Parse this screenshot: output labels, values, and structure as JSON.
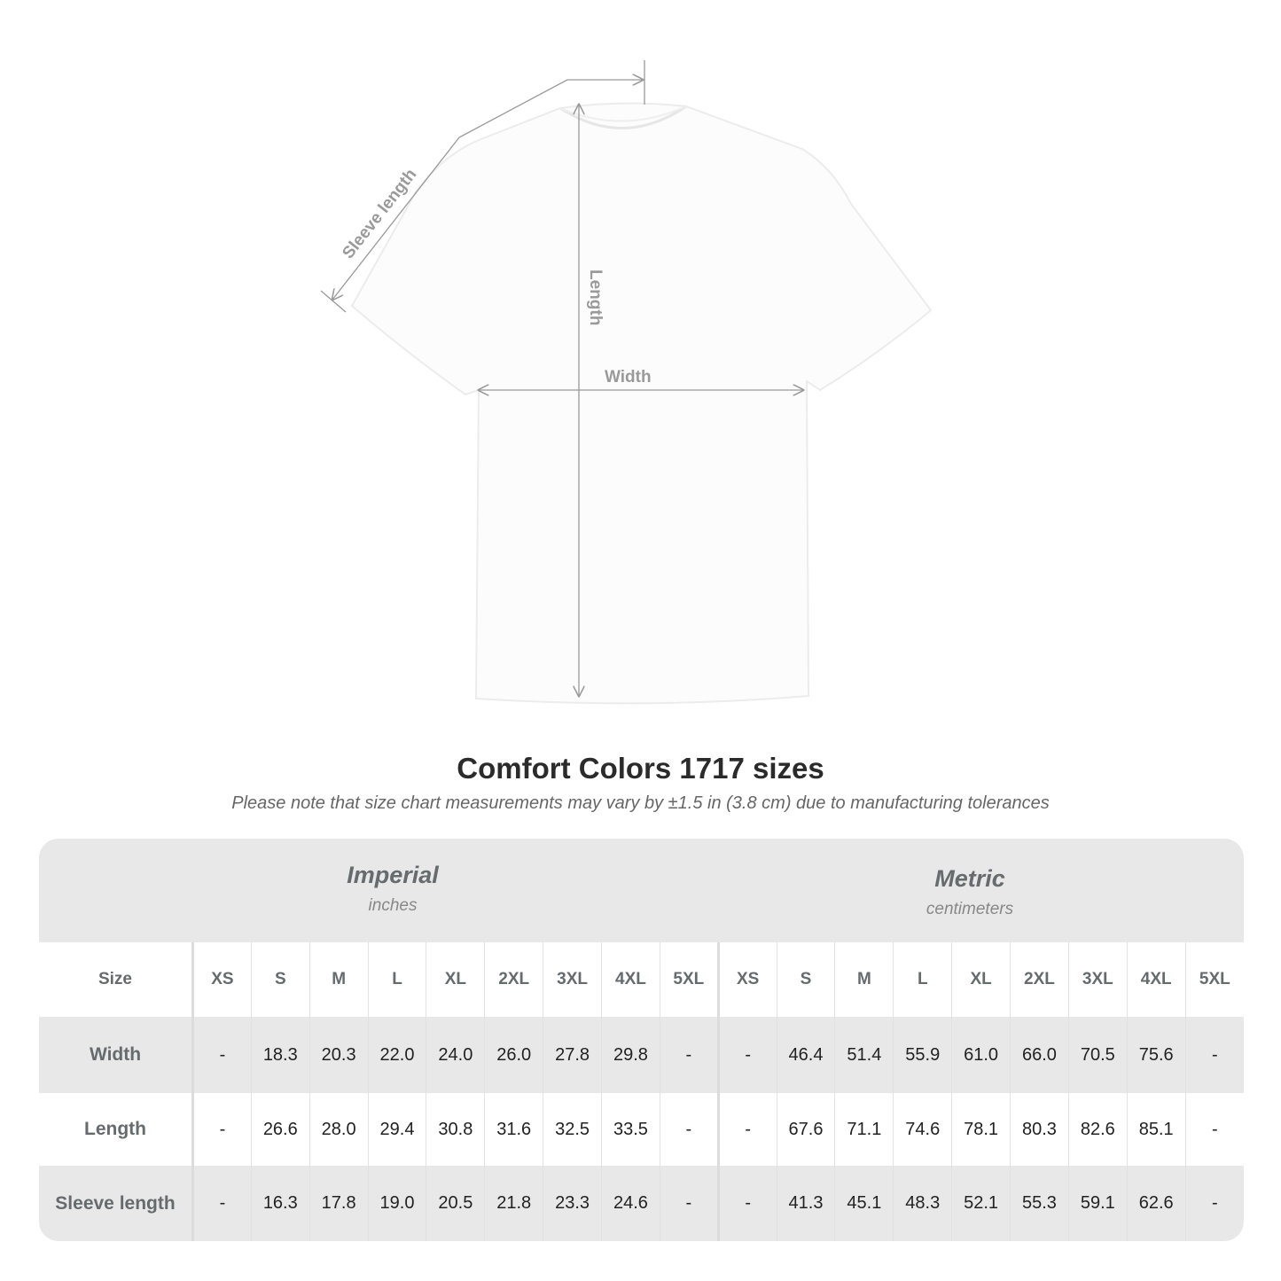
{
  "diagram": {
    "labels": {
      "sleeve": "Sleeve length",
      "length": "Length",
      "width": "Width"
    },
    "line_color": "#999999"
  },
  "title": "Comfort Colors 1717 sizes",
  "note": "Please note that size chart measurements may vary by ±1.5 in (3.8 cm) due to manufacturing tolerances",
  "table": {
    "imperial": {
      "name": "Imperial",
      "unit": "inches"
    },
    "metric": {
      "name": "Metric",
      "unit": "centimeters"
    },
    "size_label": "Size",
    "sizes": [
      "XS",
      "S",
      "M",
      "L",
      "XL",
      "2XL",
      "3XL",
      "4XL",
      "5XL"
    ],
    "rows": [
      {
        "label": "Width",
        "imperial": [
          "-",
          "18.3",
          "20.3",
          "22.0",
          "24.0",
          "26.0",
          "27.8",
          "29.8",
          "-"
        ],
        "metric": [
          "-",
          "46.4",
          "51.4",
          "55.9",
          "61.0",
          "66.0",
          "70.5",
          "75.6",
          "-"
        ]
      },
      {
        "label": "Length",
        "imperial": [
          "-",
          "26.6",
          "28.0",
          "29.4",
          "30.8",
          "31.6",
          "32.5",
          "33.5",
          "-"
        ],
        "metric": [
          "-",
          "67.6",
          "71.1",
          "74.6",
          "78.1",
          "80.3",
          "82.6",
          "85.1",
          "-"
        ]
      },
      {
        "label": "Sleeve length",
        "imperial": [
          "-",
          "16.3",
          "17.8",
          "19.0",
          "20.5",
          "21.8",
          "23.3",
          "24.6",
          "-"
        ],
        "metric": [
          "-",
          "41.3",
          "45.1",
          "48.3",
          "52.1",
          "55.3",
          "59.1",
          "62.6",
          "-"
        ]
      }
    ]
  },
  "colors": {
    "band": "#e8e8e8",
    "label": "#666b6e"
  }
}
